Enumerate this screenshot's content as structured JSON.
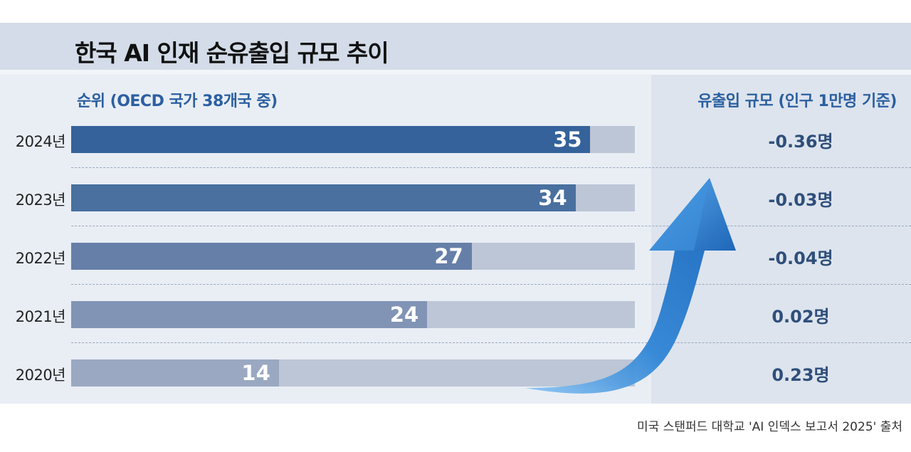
{
  "title": "한국 AI 인재 순유출입 규모 추이",
  "source": "미국 스탠퍼드 대학교 'AI 인덱스 보고서 2025' 출처",
  "colors": {
    "title_band": "#d3dce8",
    "subtitle": "#2b5fa0",
    "track": "#bcc6d6",
    "bar_2024": "#35629a",
    "bar_2023": "#49709f",
    "bar_2022": "#667fa8",
    "bar_2021": "#8194b5",
    "bar_2020": "#9aa8c2",
    "arrow": "#2f85d6"
  },
  "chart_data": {
    "type": "bar",
    "orientation": "horizontal",
    "left_header": "순위 (OECD 국가 38개국 중)",
    "right_header": "유출입 규모 (인구 1만명 기준)",
    "rank_max": 38,
    "categories": [
      "2024년",
      "2023년",
      "2022년",
      "2021년",
      "2020년"
    ],
    "rank_values": [
      35,
      34,
      27,
      24,
      14
    ],
    "rank_labels": [
      "35",
      "34",
      "27",
      "24",
      "14"
    ],
    "net_flow_values": [
      -0.36,
      -0.03,
      -0.04,
      0.02,
      0.23
    ],
    "net_flow_labels": [
      "-0.36명",
      "-0.03명",
      "-0.04명",
      "0.02명",
      "0.23명"
    ],
    "annotation": "upward-arrow"
  }
}
